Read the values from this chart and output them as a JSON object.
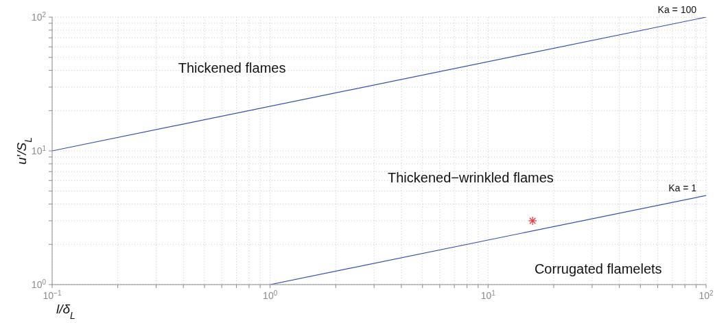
{
  "chart_data": {
    "type": "line",
    "xlabel": "l/δ$_{L}$",
    "ylabel": "u′/S$_{L}$",
    "log": "xy",
    "grid": true,
    "legend": false,
    "xlim": [
      0.1,
      100
    ],
    "ylim": [
      1,
      100
    ],
    "xticks": [
      {
        "value": 0.1,
        "label": "10$^{−1}$"
      },
      {
        "value": 0.2,
        "label": null
      },
      {
        "value": 0.3,
        "label": null
      },
      {
        "value": 0.4,
        "label": null
      },
      {
        "value": 0.5,
        "label": null
      },
      {
        "value": 0.6,
        "label": null
      },
      {
        "value": 0.7,
        "label": null
      },
      {
        "value": 0.8,
        "label": null
      },
      {
        "value": 0.9,
        "label": null
      },
      {
        "value": 1,
        "label": "10$^{0}$"
      },
      {
        "value": 2,
        "label": null
      },
      {
        "value": 3,
        "label": null
      },
      {
        "value": 4,
        "label": null
      },
      {
        "value": 5,
        "label": null
      },
      {
        "value": 6,
        "label": null
      },
      {
        "value": 7,
        "label": null
      },
      {
        "value": 8,
        "label": null
      },
      {
        "value": 9,
        "label": null
      },
      {
        "value": 10,
        "label": "10$^{1}$"
      },
      {
        "value": 20,
        "label": null
      },
      {
        "value": 30,
        "label": null
      },
      {
        "value": 40,
        "label": null
      },
      {
        "value": 50,
        "label": null
      },
      {
        "value": 60,
        "label": null
      },
      {
        "value": 70,
        "label": null
      },
      {
        "value": 80,
        "label": null
      },
      {
        "value": 90,
        "label": null
      },
      {
        "value": 100,
        "label": "10$^{2}$"
      }
    ],
    "yticks": [
      {
        "value": 1,
        "label": "10$^{0}$"
      },
      {
        "value": 2,
        "label": null
      },
      {
        "value": 3,
        "label": null
      },
      {
        "value": 4,
        "label": null
      },
      {
        "value": 5,
        "label": null
      },
      {
        "value": 6,
        "label": null
      },
      {
        "value": 7,
        "label": null
      },
      {
        "value": 8,
        "label": null
      },
      {
        "value": 9,
        "label": null
      },
      {
        "value": 10,
        "label": "10$^{1}$"
      },
      {
        "value": 20,
        "label": null
      },
      {
        "value": 30,
        "label": null
      },
      {
        "value": 40,
        "label": null
      },
      {
        "value": 50,
        "label": null
      },
      {
        "value": 60,
        "label": null
      },
      {
        "value": 70,
        "label": null
      },
      {
        "value": 80,
        "label": null
      },
      {
        "value": 90,
        "label": null
      },
      {
        "value": 100,
        "label": "10$^{2}$"
      }
    ],
    "series": [
      {
        "name": "Ka = 100",
        "color": "#2f4fae",
        "marker": "none",
        "line_style": "solid",
        "x": [
          0.1,
          100
        ],
        "values": [
          10,
          100
        ]
      },
      {
        "name": "Ka = 1",
        "color": "#2f4fae",
        "marker": "none",
        "line_style": "solid",
        "x": [
          1,
          100
        ],
        "values": [
          1,
          4.64
        ]
      },
      {
        "type": "scatter",
        "color": "#e8303a",
        "marker": "cross",
        "x": [
          16
        ],
        "values": [
          3
        ]
      }
    ],
    "annotations": [
      "Thickened flames",
      "Thickened−wrinkled flames",
      "Corrugated flamelets"
    ]
  }
}
